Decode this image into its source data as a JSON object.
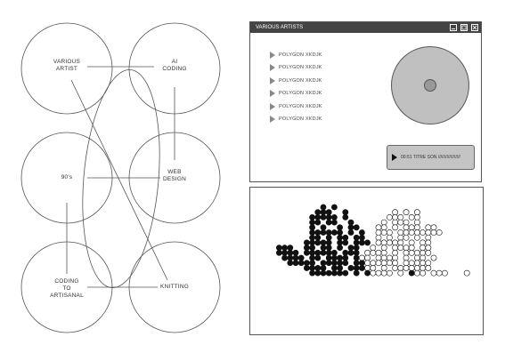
{
  "diagram": {
    "nodes": [
      {
        "id": "various-artist",
        "label": "VARIOUS\nARTIST"
      },
      {
        "id": "ai-coding",
        "label": "AI\nCODING"
      },
      {
        "id": "nineties",
        "label": "90's"
      },
      {
        "id": "web-design",
        "label": "WEB\nDESIGN"
      },
      {
        "id": "coding-artisanal",
        "label": "CODING\nTO\nARTISANAL"
      },
      {
        "id": "knitting",
        "label": "KNITTING"
      }
    ]
  },
  "player": {
    "title": "VARIOUS ARTISTS",
    "tracks": [
      {
        "label": "POLYGON XKDJK"
      },
      {
        "label": "POLYGON XKDJK"
      },
      {
        "label": "POLYGON XKDJK"
      },
      {
        "label": "POLYGON XKDJK"
      },
      {
        "label": "POLYGON XKDJK"
      },
      {
        "label": "POLYGON XKDJK"
      }
    ],
    "now_playing": "00:51  TITRE SON //////////////////",
    "colors": {
      "titlebar": "#444444",
      "disc": "#c0c0c0",
      "nowbar": "#c4c4c4"
    }
  },
  "icons": {
    "minimize": "minimize-icon",
    "maximize": "maximize-icon",
    "close": "close-icon",
    "play": "play-icon",
    "track": "play-triangle-icon"
  }
}
